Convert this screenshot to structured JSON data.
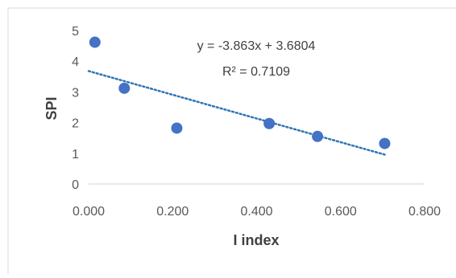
{
  "chart_data": {
    "type": "scatter",
    "title": "",
    "xlabel": "I index",
    "ylabel": "SPI",
    "xlim": [
      0,
      0.8
    ],
    "ylim": [
      0,
      5
    ],
    "x_ticks": [
      "0.000",
      "0.200",
      "0.400",
      "0.600",
      "0.800"
    ],
    "y_ticks": [
      "0",
      "1",
      "2",
      "3",
      "4",
      "5"
    ],
    "grid": false,
    "legend": "none",
    "series": [
      {
        "x": [
          0.015,
          0.085,
          0.21,
          0.43,
          0.545,
          0.705
        ],
        "y": [
          4.62,
          3.12,
          1.82,
          1.97,
          1.55,
          1.32
        ],
        "color": "#4472C4"
      }
    ],
    "trendline": {
      "type": "linear",
      "slope": -3.863,
      "intercept": 3.6804,
      "x_range": [
        0.0,
        0.705
      ],
      "color": "#2E75B6",
      "style": "dotted",
      "equation": "y = -3.863x + 3.6804",
      "r_squared": "R² = 0.7109"
    }
  }
}
